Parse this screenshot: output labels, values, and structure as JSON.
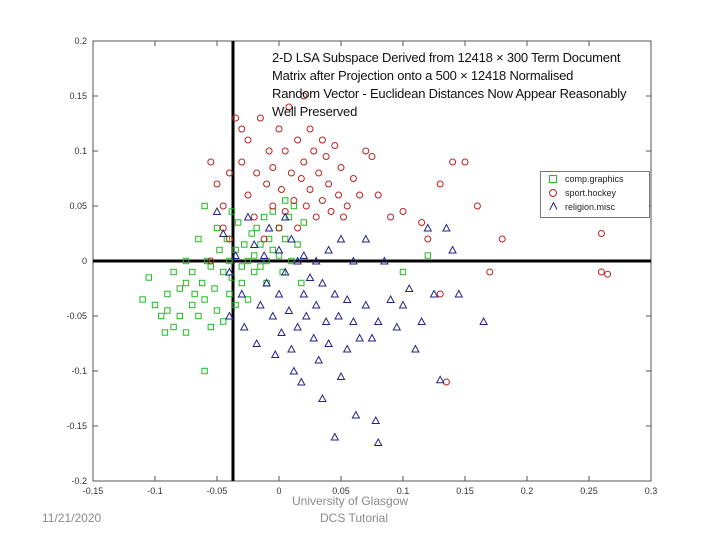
{
  "chart_data": {
    "type": "scatter",
    "title_lines": [
      "2-D LSA Subspace Derived from  12418 × 300 Term Document",
      "Matrix after Projection onto a 500 × 12418 Normalised",
      "Random Vector - Euclidean Distances Now Appear Reasonably",
      "Well Preserved"
    ],
    "xlim": [
      -0.15,
      0.3
    ],
    "ylim": [
      -0.2,
      0.2
    ],
    "x_ticks": [
      -0.15,
      -0.1,
      -0.05,
      0,
      0.05,
      0.1,
      0.15,
      0.2,
      0.25,
      0.3
    ],
    "x_tick_labels": [
      "-0.15",
      "-0.1",
      "-0.05",
      "0",
      "0.05",
      "0.1",
      "0.15",
      "0.2",
      "0.25",
      "0.3"
    ],
    "y_ticks": [
      0.2,
      0.15,
      0.1,
      0.05,
      0,
      -0.05,
      -0.1,
      -0.15,
      -0.2
    ],
    "y_tick_labels": [
      "0.2",
      "0.15",
      "0.1",
      "0.05",
      "0",
      "-0.05",
      "-0.1",
      "-0.15",
      "-0.2"
    ],
    "grid": false,
    "legend_position": "right",
    "series": [
      {
        "name": "comp.graphics",
        "marker": "square",
        "color": "#22bb22",
        "points": [
          [
            -0.11,
            -0.035
          ],
          [
            -0.1,
            -0.04
          ],
          [
            -0.095,
            -0.05
          ],
          [
            -0.09,
            -0.03
          ],
          [
            -0.09,
            -0.045
          ],
          [
            -0.085,
            -0.06
          ],
          [
            -0.08,
            -0.05
          ],
          [
            -0.08,
            -0.025
          ],
          [
            -0.075,
            -0.065
          ],
          [
            -0.075,
            -0.02
          ],
          [
            -0.07,
            -0.04
          ],
          [
            -0.07,
            -0.01
          ],
          [
            -0.068,
            -0.03
          ],
          [
            -0.065,
            -0.05
          ],
          [
            -0.062,
            -0.02
          ],
          [
            -0.06,
            0.05
          ],
          [
            -0.06,
            -0.035
          ],
          [
            -0.058,
            0.0
          ],
          [
            -0.055,
            -0.06
          ],
          [
            -0.055,
            -0.005
          ],
          [
            -0.052,
            -0.025
          ],
          [
            -0.05,
            0.03
          ],
          [
            -0.05,
            -0.045
          ],
          [
            -0.048,
            0.01
          ],
          [
            -0.045,
            -0.01
          ],
          [
            -0.045,
            -0.055
          ],
          [
            -0.042,
            0.02
          ],
          [
            -0.04,
            -0.03
          ],
          [
            -0.04,
            0.0
          ],
          [
            -0.038,
            -0.015
          ],
          [
            -0.035,
            0.01
          ],
          [
            -0.035,
            -0.04
          ],
          [
            -0.033,
            0.035
          ],
          [
            -0.03,
            -0.005
          ],
          [
            -0.03,
            -0.02
          ],
          [
            -0.028,
            0.015
          ],
          [
            -0.025,
            0.0
          ],
          [
            -0.025,
            -0.035
          ],
          [
            -0.022,
            0.025
          ],
          [
            -0.02,
            0.005
          ],
          [
            -0.02,
            -0.01
          ],
          [
            -0.018,
            0.03
          ],
          [
            -0.015,
            -0.005
          ],
          [
            -0.015,
            0.015
          ],
          [
            -0.012,
            0.04
          ],
          [
            -0.01,
            0.0
          ],
          [
            -0.01,
            -0.02
          ],
          [
            -0.008,
            0.02
          ],
          [
            -0.005,
            0.045
          ],
          [
            -0.005,
            0.01
          ],
          [
            0.0,
            0.005
          ],
          [
            0.0,
            0.03
          ],
          [
            0.003,
            -0.01
          ],
          [
            0.005,
            0.02
          ],
          [
            0.008,
            0.04
          ],
          [
            0.01,
            0.0
          ],
          [
            0.012,
            0.05
          ],
          [
            0.015,
            0.015
          ],
          [
            0.018,
            -0.02
          ],
          [
            0.02,
            0.035
          ],
          [
            -0.105,
            -0.015
          ],
          [
            -0.085,
            -0.01
          ],
          [
            -0.092,
            -0.065
          ],
          [
            -0.06,
            -0.1
          ],
          [
            0.12,
            0.005
          ],
          [
            0.005,
            0.055
          ],
          [
            0.1,
            -0.01
          ],
          [
            -0.075,
            0.0
          ],
          [
            -0.065,
            0.02
          ],
          [
            -0.038,
            0.045
          ]
        ]
      },
      {
        "name": "sport.hockey",
        "marker": "circle",
        "color": "#bb2222",
        "points": [
          [
            -0.055,
            0.0
          ],
          [
            -0.045,
            0.03
          ],
          [
            -0.05,
            0.07
          ],
          [
            -0.055,
            0.09
          ],
          [
            -0.045,
            0.05
          ],
          [
            -0.04,
            0.02
          ],
          [
            -0.035,
            0.13
          ],
          [
            -0.03,
            0.12
          ],
          [
            -0.03,
            0.09
          ],
          [
            -0.025,
            0.11
          ],
          [
            -0.025,
            0.06
          ],
          [
            -0.02,
            0.04
          ],
          [
            -0.018,
            0.08
          ],
          [
            -0.015,
            0.13
          ],
          [
            -0.012,
            0.02
          ],
          [
            -0.01,
            0.07
          ],
          [
            -0.008,
            0.1
          ],
          [
            -0.005,
            0.05
          ],
          [
            -0.005,
            0.085
          ],
          [
            0.0,
            0.12
          ],
          [
            0.0,
            0.03
          ],
          [
            0.002,
            0.065
          ],
          [
            0.005,
            0.1
          ],
          [
            0.005,
            0.045
          ],
          [
            0.008,
            0.14
          ],
          [
            0.01,
            0.08
          ],
          [
            0.012,
            0.055
          ],
          [
            0.015,
            0.11
          ],
          [
            0.015,
            0.03
          ],
          [
            0.018,
            0.075
          ],
          [
            0.02,
            0.09
          ],
          [
            0.022,
            0.05
          ],
          [
            0.025,
            0.12
          ],
          [
            0.025,
            0.065
          ],
          [
            0.028,
            0.1
          ],
          [
            0.03,
            0.04
          ],
          [
            0.032,
            0.08
          ],
          [
            0.035,
            0.11
          ],
          [
            0.035,
            0.055
          ],
          [
            0.038,
            0.095
          ],
          [
            0.04,
            0.07
          ],
          [
            0.042,
            0.045
          ],
          [
            0.045,
            0.105
          ],
          [
            0.048,
            0.06
          ],
          [
            0.05,
            0.085
          ],
          [
            0.052,
            0.04
          ],
          [
            0.055,
            0.05
          ],
          [
            0.06,
            0.075
          ],
          [
            0.065,
            0.06
          ],
          [
            0.07,
            0.1
          ],
          [
            0.075,
            0.095
          ],
          [
            0.08,
            0.06
          ],
          [
            0.09,
            0.04
          ],
          [
            0.1,
            0.045
          ],
          [
            0.115,
            0.035
          ],
          [
            0.12,
            0.02
          ],
          [
            0.13,
            0.07
          ],
          [
            0.13,
            -0.03
          ],
          [
            0.14,
            0.09
          ],
          [
            0.15,
            0.09
          ],
          [
            0.16,
            0.05
          ],
          [
            0.17,
            -0.01
          ],
          [
            0.18,
            0.02
          ],
          [
            0.22,
            0.06
          ],
          [
            0.26,
            0.025
          ],
          [
            0.26,
            -0.01
          ],
          [
            0.265,
            -0.012
          ],
          [
            0.135,
            -0.11
          ],
          [
            -0.04,
            0.08
          ],
          [
            0.02,
            0.15
          ]
        ]
      },
      {
        "name": "religion.misc",
        "marker": "triangle",
        "color": "#222288",
        "points": [
          [
            -0.05,
            0.045
          ],
          [
            -0.045,
            0.025
          ],
          [
            -0.04,
            -0.01
          ],
          [
            -0.04,
            -0.05
          ],
          [
            -0.035,
            0.005
          ],
          [
            -0.03,
            -0.03
          ],
          [
            -0.028,
            -0.06
          ],
          [
            -0.025,
            0.04
          ],
          [
            -0.02,
            0.015
          ],
          [
            -0.018,
            -0.075
          ],
          [
            -0.015,
            -0.04
          ],
          [
            -0.012,
            0.005
          ],
          [
            -0.01,
            -0.02
          ],
          [
            -0.008,
            0.03
          ],
          [
            -0.005,
            -0.05
          ],
          [
            -0.003,
            -0.085
          ],
          [
            0.0,
            0.01
          ],
          [
            0.0,
            -0.03
          ],
          [
            0.002,
            -0.065
          ],
          [
            0.005,
            0.04
          ],
          [
            0.005,
            -0.01
          ],
          [
            0.008,
            -0.045
          ],
          [
            0.01,
            0.02
          ],
          [
            0.01,
            -0.08
          ],
          [
            0.012,
            -0.1
          ],
          [
            0.015,
            0.0
          ],
          [
            0.015,
            -0.06
          ],
          [
            0.018,
            -0.11
          ],
          [
            0.02,
            -0.03
          ],
          [
            0.02,
            0.005
          ],
          [
            0.022,
            -0.05
          ],
          [
            0.025,
            -0.015
          ],
          [
            0.028,
            -0.07
          ],
          [
            0.03,
            0.0
          ],
          [
            0.03,
            -0.04
          ],
          [
            0.032,
            -0.09
          ],
          [
            0.035,
            -0.125
          ],
          [
            0.035,
            -0.02
          ],
          [
            0.038,
            -0.055
          ],
          [
            0.04,
            0.01
          ],
          [
            0.04,
            -0.075
          ],
          [
            0.045,
            -0.03
          ],
          [
            0.045,
            -0.16
          ],
          [
            0.048,
            -0.05
          ],
          [
            0.05,
            0.02
          ],
          [
            0.05,
            -0.105
          ],
          [
            0.055,
            -0.08
          ],
          [
            0.055,
            -0.035
          ],
          [
            0.06,
            0.0
          ],
          [
            0.06,
            -0.055
          ],
          [
            0.062,
            -0.14
          ],
          [
            0.065,
            -0.07
          ],
          [
            0.07,
            0.02
          ],
          [
            0.07,
            -0.04
          ],
          [
            0.075,
            -0.07
          ],
          [
            0.078,
            -0.145
          ],
          [
            0.08,
            -0.165
          ],
          [
            0.08,
            -0.055
          ],
          [
            0.085,
            0.0
          ],
          [
            0.09,
            -0.035
          ],
          [
            0.095,
            -0.06
          ],
          [
            0.1,
            -0.04
          ],
          [
            0.105,
            -0.025
          ],
          [
            0.11,
            -0.08
          ],
          [
            0.115,
            -0.055
          ],
          [
            0.125,
            -0.03
          ],
          [
            0.13,
            -0.108
          ],
          [
            0.135,
            0.03
          ],
          [
            0.14,
            0.01
          ],
          [
            0.145,
            -0.03
          ],
          [
            0.165,
            -0.055
          ],
          [
            0.12,
            0.03
          ]
        ]
      }
    ]
  },
  "legend": {
    "entries": [
      "comp.graphics",
      "sport.hockey",
      "religion.misc"
    ]
  },
  "footer": {
    "date": "11/21/2020",
    "institution": "University of Glasgow",
    "caption": "DCS Tutorial"
  }
}
